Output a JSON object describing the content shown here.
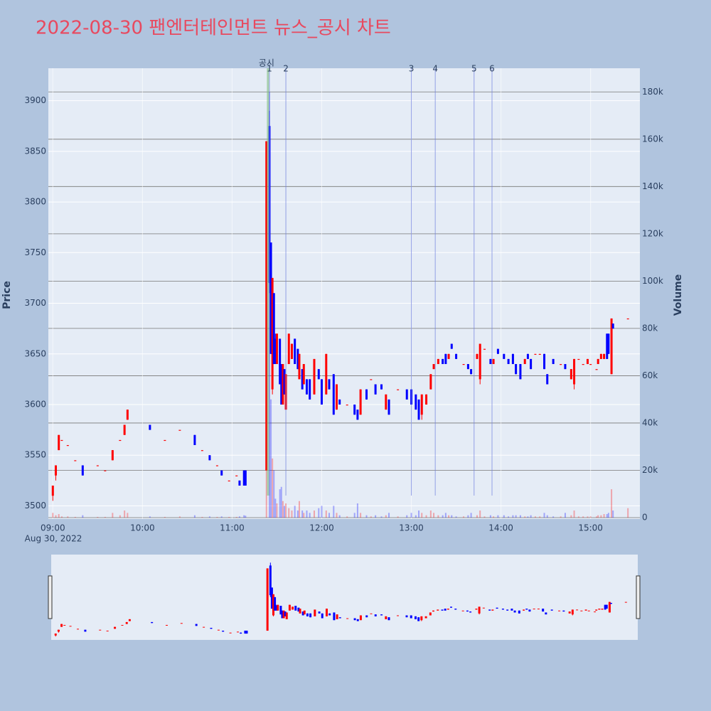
{
  "chart_data": {
    "type": "candlestick",
    "title": "2022-08-30 팬엔터테인먼트 뉴스_공시 차트",
    "date_label": "Aug 30, 2022",
    "y_label": "Price",
    "y2_label": "Volume",
    "increasing_color": "#ff0000",
    "decreasing_color": "#0000ff",
    "grid": true,
    "xlim": [
      "08:57",
      "15:33"
    ],
    "xticks": [
      "09:00",
      "10:00",
      "11:00",
      "12:00",
      "13:00",
      "14:00",
      "15:00"
    ],
    "ylim": [
      3487,
      3932
    ],
    "yticks": [
      3500,
      3550,
      3600,
      3650,
      3700,
      3750,
      3800,
      3850,
      3900
    ],
    "y2lim": [
      -600,
      190000
    ],
    "y2ticks": [
      0,
      {
        "value": 20000,
        "label": "20k"
      },
      {
        "value": 40000,
        "label": "40k"
      },
      {
        "value": 60000,
        "label": "60k"
      },
      {
        "value": 80000,
        "label": "80k"
      },
      {
        "value": 100000,
        "label": "100k"
      },
      {
        "value": 120000,
        "label": "120k"
      },
      {
        "value": 140000,
        "label": "140k"
      },
      {
        "value": 160000,
        "label": "160k"
      },
      {
        "value": 180000,
        "label": "180k"
      }
    ],
    "events": [
      {
        "label": "공시",
        "x": "11:24",
        "color": "#7fbf7f"
      },
      {
        "label": "1",
        "x": "11:25",
        "color": "#6f7fdf"
      },
      {
        "label": "2",
        "x": "11:36",
        "color": "#6f7fdf"
      },
      {
        "label": "3",
        "x": "13:00",
        "color": "#6f7fdf"
      },
      {
        "label": "4",
        "x": "13:16",
        "color": "#6f7fdf"
      },
      {
        "label": "5",
        "x": "13:42",
        "color": "#6f7fdf"
      },
      {
        "label": "6",
        "x": "13:54",
        "color": "#6f7fdf"
      }
    ],
    "x": [
      "09:00",
      "09:02",
      "09:04",
      "09:06",
      "09:10",
      "09:15",
      "09:20",
      "09:30",
      "09:35",
      "09:40",
      "09:45",
      "09:48",
      "09:50",
      "10:05",
      "10:15",
      "10:25",
      "10:35",
      "10:40",
      "10:45",
      "10:50",
      "10:53",
      "10:58",
      "11:03",
      "11:05",
      "11:08",
      "11:09",
      "11:23",
      "11:25",
      "11:26",
      "11:27",
      "11:28",
      "11:29",
      "11:30",
      "11:32",
      "11:33",
      "11:34",
      "11:35",
      "11:36",
      "11:38",
      "11:40",
      "11:42",
      "11:44",
      "11:45",
      "11:47",
      "11:48",
      "11:50",
      "11:52",
      "11:55",
      "11:58",
      "12:00",
      "12:03",
      "12:05",
      "12:08",
      "12:10",
      "12:12",
      "12:17",
      "12:22",
      "12:24",
      "12:26",
      "12:30",
      "12:33",
      "12:36",
      "12:40",
      "12:43",
      "12:45",
      "12:51",
      "12:57",
      "13:00",
      "13:03",
      "13:05",
      "13:07",
      "13:10",
      "13:13",
      "13:15",
      "13:18",
      "13:21",
      "13:23",
      "13:25",
      "13:27",
      "13:30",
      "13:35",
      "13:38",
      "13:40",
      "13:44",
      "13:46",
      "13:49",
      "13:53",
      "13:55",
      "13:58",
      "14:02",
      "14:05",
      "14:08",
      "14:10",
      "14:13",
      "14:16",
      "14:18",
      "14:20",
      "14:23",
      "14:26",
      "14:29",
      "14:31",
      "14:35",
      "14:40",
      "14:43",
      "14:47",
      "14:49",
      "14:52",
      "14:55",
      "14:58",
      "15:00",
      "15:04",
      "15:05",
      "15:07",
      "15:09",
      "15:11",
      "15:12",
      "15:14",
      "15:15",
      "15:25"
    ],
    "open": [
      3510,
      3530,
      3555,
      3565,
      3560,
      3545,
      3540,
      3540,
      3535,
      3545,
      3565,
      3570,
      3585,
      3580,
      3565,
      3575,
      3570,
      3555,
      3550,
      3540,
      3535,
      3525,
      3530,
      3525,
      3535,
      3535,
      3535,
      3875,
      3760,
      3615,
      3710,
      3665,
      3640,
      3665,
      3640,
      3600,
      3635,
      3595,
      3640,
      3645,
      3665,
      3655,
      3625,
      3635,
      3620,
      3625,
      3625,
      3610,
      3635,
      3625,
      3610,
      3625,
      3630,
      3595,
      3605,
      3600,
      3600,
      3595,
      3590,
      3615,
      3625,
      3620,
      3620,
      3595,
      3605,
      3615,
      3615,
      3615,
      3610,
      3605,
      3590,
      3600,
      3615,
      3635,
      3640,
      3645,
      3650,
      3645,
      3660,
      3650,
      3640,
      3640,
      3635,
      3645,
      3625,
      3655,
      3645,
      3640,
      3655,
      3650,
      3645,
      3650,
      3640,
      3640,
      3640,
      3650,
      3645,
      3650,
      3650,
      3650,
      3630,
      3645,
      3640,
      3640,
      3625,
      3620,
      3645,
      3640,
      3640,
      3640,
      3635,
      3640,
      3645,
      3645,
      3670,
      3670,
      3630,
      3680,
      3685
    ],
    "high": [
      3520,
      3540,
      3570,
      3565,
      3560,
      3545,
      3540,
      3540,
      3535,
      3555,
      3565,
      3580,
      3595,
      3580,
      3565,
      3575,
      3570,
      3555,
      3550,
      3540,
      3535,
      3525,
      3530,
      3525,
      3535,
      3535,
      3860,
      3890,
      3760,
      3725,
      3710,
      3670,
      3670,
      3665,
      3640,
      3640,
      3635,
      3630,
      3670,
      3660,
      3665,
      3655,
      3650,
      3635,
      3640,
      3625,
      3625,
      3645,
      3635,
      3625,
      3650,
      3625,
      3630,
      3620,
      3605,
      3600,
      3600,
      3595,
      3615,
      3615,
      3625,
      3620,
      3620,
      3610,
      3605,
      3615,
      3615,
      3615,
      3610,
      3605,
      3610,
      3610,
      3630,
      3640,
      3645,
      3645,
      3650,
      3650,
      3660,
      3650,
      3640,
      3640,
      3635,
      3650,
      3660,
      3655,
      3645,
      3645,
      3655,
      3650,
      3645,
      3650,
      3640,
      3640,
      3645,
      3650,
      3645,
      3650,
      3650,
      3650,
      3630,
      3645,
      3640,
      3640,
      3635,
      3645,
      3645,
      3640,
      3645,
      3640,
      3635,
      3645,
      3650,
      3650,
      3670,
      3670,
      3685,
      3680,
      3685
    ],
    "low": [
      3505,
      3525,
      3555,
      3565,
      3560,
      3545,
      3530,
      3540,
      3535,
      3545,
      3565,
      3570,
      3585,
      3575,
      3565,
      3575,
      3560,
      3555,
      3545,
      3540,
      3530,
      3525,
      3530,
      3520,
      3520,
      3520,
      3535,
      3710,
      3650,
      3610,
      3640,
      3640,
      3640,
      3620,
      3600,
      3600,
      3610,
      3595,
      3640,
      3645,
      3640,
      3635,
      3625,
      3615,
      3620,
      3610,
      3605,
      3610,
      3625,
      3600,
      3610,
      3615,
      3590,
      3595,
      3600,
      3600,
      3590,
      3585,
      3590,
      3605,
      3625,
      3610,
      3615,
      3595,
      3590,
      3615,
      3605,
      3600,
      3595,
      3585,
      3585,
      3600,
      3615,
      3635,
      3640,
      3640,
      3640,
      3645,
      3655,
      3645,
      3640,
      3635,
      3630,
      3645,
      3620,
      3655,
      3640,
      3640,
      3650,
      3645,
      3640,
      3640,
      3630,
      3625,
      3640,
      3645,
      3635,
      3650,
      3650,
      3635,
      3620,
      3640,
      3640,
      3635,
      3625,
      3615,
      3645,
      3640,
      3640,
      3640,
      3635,
      3640,
      3645,
      3645,
      3645,
      3650,
      3630,
      3675,
      3685
    ],
    "close": [
      3520,
      3540,
      3570,
      3565,
      3560,
      3545,
      3530,
      3540,
      3535,
      3555,
      3565,
      3580,
      3595,
      3575,
      3565,
      3575,
      3560,
      3555,
      3545,
      3540,
      3530,
      3525,
      3530,
      3520,
      3520,
      3520,
      3860,
      3720,
      3650,
      3725,
      3640,
      3640,
      3670,
      3620,
      3600,
      3640,
      3610,
      3630,
      3670,
      3660,
      3640,
      3635,
      3650,
      3615,
      3640,
      3610,
      3605,
      3645,
      3625,
      3600,
      3650,
      3615,
      3590,
      3620,
      3600,
      3600,
      3590,
      3585,
      3615,
      3605,
      3625,
      3610,
      3615,
      3610,
      3590,
      3615,
      3605,
      3600,
      3595,
      3585,
      3610,
      3610,
      3630,
      3640,
      3645,
      3640,
      3640,
      3650,
      3655,
      3645,
      3640,
      3635,
      3630,
      3650,
      3660,
      3655,
      3640,
      3645,
      3650,
      3645,
      3640,
      3640,
      3630,
      3625,
      3645,
      3645,
      3635,
      3650,
      3650,
      3635,
      3620,
      3640,
      3640,
      3635,
      3635,
      3645,
      3645,
      3640,
      3645,
      3640,
      3635,
      3645,
      3650,
      3650,
      3645,
      3650,
      3685,
      3675,
      3685
    ],
    "volume": [
      2000,
      1000,
      1500,
      500,
      500,
      300,
      1000,
      300,
      300,
      2000,
      1000,
      3000,
      2000,
      500,
      300,
      500,
      1000,
      300,
      500,
      300,
      500,
      300,
      300,
      500,
      1000,
      800,
      30000,
      180000,
      50000,
      25000,
      20000,
      8000,
      6000,
      12000,
      13000,
      7000,
      5000,
      6000,
      4000,
      3000,
      5000,
      3000,
      7000,
      3000,
      2000,
      3000,
      2000,
      3000,
      4000,
      5000,
      3000,
      2000,
      5000,
      2000,
      1000,
      500,
      2000,
      6000,
      2000,
      1000,
      500,
      1000,
      500,
      1000,
      2000,
      500,
      1000,
      2000,
      1000,
      3000,
      2000,
      1000,
      3000,
      2000,
      1000,
      1000,
      2000,
      1000,
      1000,
      500,
      500,
      1000,
      2000,
      1000,
      3000,
      500,
      1000,
      500,
      1000,
      1000,
      500,
      1000,
      1000,
      1000,
      500,
      500,
      1000,
      500,
      500,
      2000,
      1000,
      500,
      500,
      2000,
      1000,
      3000,
      500,
      500,
      500,
      500,
      500,
      1000,
      1000,
      1500,
      1500,
      2000,
      12000,
      3000,
      4000
    ]
  }
}
